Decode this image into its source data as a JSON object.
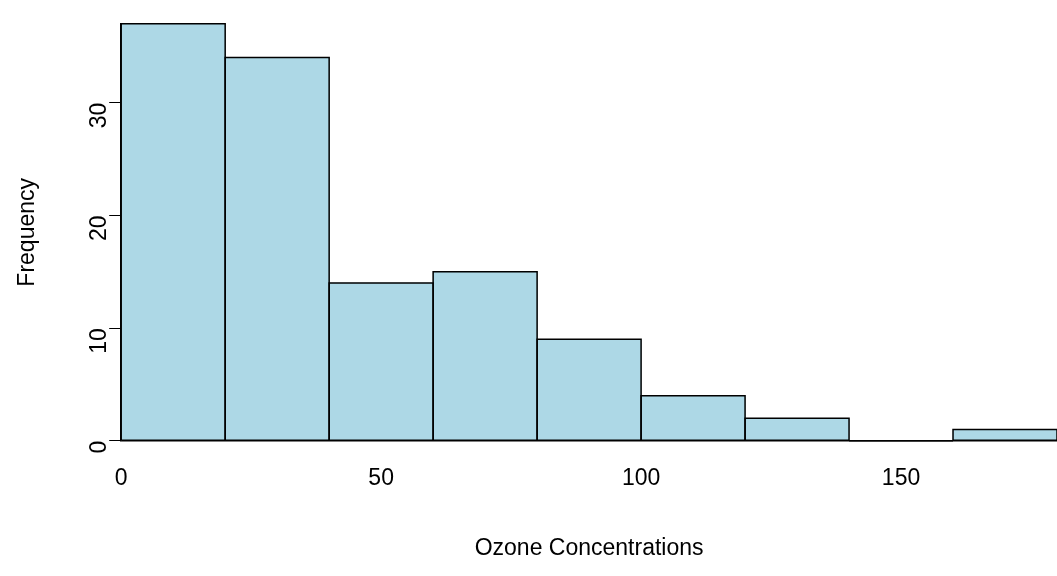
{
  "chart_data": {
    "type": "histogram",
    "xlabel": "Ozone Concentrations",
    "ylabel": "Frequency",
    "bins": [
      0,
      20,
      40,
      60,
      80,
      100,
      120,
      140,
      160,
      180
    ],
    "values": [
      37,
      34,
      14,
      15,
      9,
      4,
      2,
      0,
      1
    ],
    "color": "#add8e6",
    "xlim": [
      0,
      180
    ],
    "xticks": [
      0,
      50,
      100,
      150
    ],
    "ylim": [
      0,
      37
    ],
    "yticks": [
      0,
      10,
      20,
      30
    ],
    "grid": false,
    "legend": false
  }
}
